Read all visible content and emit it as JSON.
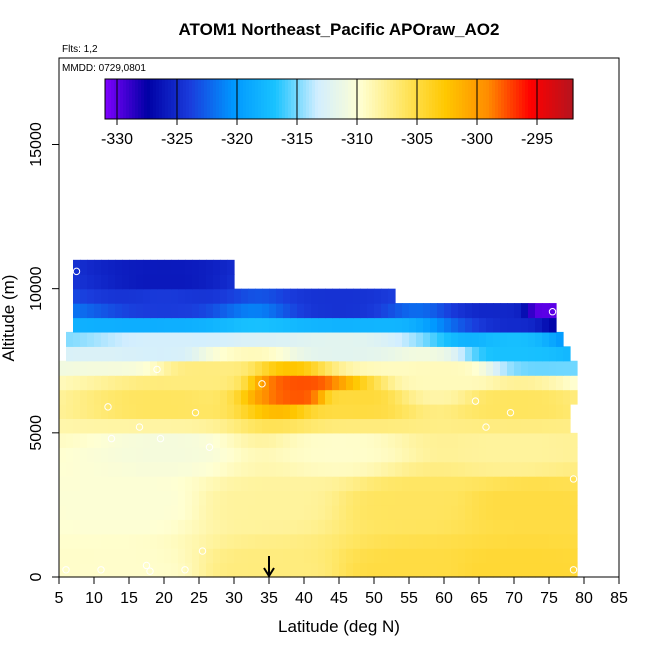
{
  "chart_data": {
    "type": "heatmap",
    "title": "ATOM1 Northeast_Pacific APOraw_AO2",
    "flights_note": "Flts: 1,2",
    "date_note": "MMDD: 0729,0801",
    "xlabel": "Latitude (deg N)",
    "ylabel": "Altitude (m)",
    "xlim": [
      5,
      85
    ],
    "ylim": [
      0,
      18000
    ],
    "x_ticks": [
      5,
      10,
      15,
      20,
      25,
      30,
      35,
      40,
      45,
      50,
      55,
      60,
      65,
      70,
      75,
      80,
      85
    ],
    "y_ticks": [
      0,
      5000,
      10000,
      15000
    ],
    "arrow_marker_latitude": 35,
    "colorbar": {
      "range": [
        -331,
        -292
      ],
      "ticks": [
        -330,
        -325,
        -320,
        -315,
        -310,
        -305,
        -300,
        -295
      ],
      "colors": [
        "#7f00ff",
        "#0000a5",
        "#1a3cdc",
        "#0096ff",
        "#19c3ff",
        "#d2eeff",
        "#ffffd2",
        "#ffe664",
        "#ffc800",
        "#ff8c00",
        "#ff0000",
        "#b4141e"
      ]
    },
    "grid_step": {
      "lat": 1,
      "alt": 500
    },
    "value_anchors": [
      {
        "lat": 15,
        "alt": 250,
        "value": -309.5
      },
      {
        "lat": 35,
        "alt": 250,
        "value": -307.0
      },
      {
        "lat": 55,
        "alt": 250,
        "value": -305.0
      },
      {
        "lat": 70,
        "alt": 250,
        "value": -304.5
      },
      {
        "lat": 15,
        "alt": 2500,
        "value": -310.0
      },
      {
        "lat": 35,
        "alt": 2500,
        "value": -308.0
      },
      {
        "lat": 55,
        "alt": 2500,
        "value": -306.0
      },
      {
        "lat": 72,
        "alt": 2500,
        "value": -305.0
      },
      {
        "lat": 20,
        "alt": 4500,
        "value": -310.5
      },
      {
        "lat": 45,
        "alt": 4500,
        "value": -309.5
      },
      {
        "lat": 70,
        "alt": 4500,
        "value": -308.0
      },
      {
        "lat": 20,
        "alt": 6000,
        "value": -306.0
      },
      {
        "lat": 45,
        "alt": 6000,
        "value": -305.0
      },
      {
        "lat": 70,
        "alt": 6000,
        "value": -306.0
      },
      {
        "lat": 25,
        "alt": 7000,
        "value": -307.0
      },
      {
        "lat": 40,
        "alt": 6500,
        "value": -297.5
      },
      {
        "lat": 60,
        "alt": 7000,
        "value": -309.0
      },
      {
        "lat": 20,
        "alt": 8000,
        "value": -313.0
      },
      {
        "lat": 45,
        "alt": 8000,
        "value": -312.0
      },
      {
        "lat": 70,
        "alt": 8000,
        "value": -317.0
      },
      {
        "lat": 20,
        "alt": 9500,
        "value": -324.0
      },
      {
        "lat": 45,
        "alt": 9500,
        "value": -324.5
      },
      {
        "lat": 70,
        "alt": 9000,
        "value": -325.0
      },
      {
        "lat": 20,
        "alt": 10300,
        "value": -326.0
      },
      {
        "lat": 75,
        "alt": 9300,
        "value": -330.0
      }
    ],
    "sample_points": [
      {
        "lat": 7.5,
        "alt": 10600
      },
      {
        "lat": 19,
        "alt": 7200
      },
      {
        "lat": 12,
        "alt": 5900
      },
      {
        "lat": 24.5,
        "alt": 5700
      },
      {
        "lat": 16.5,
        "alt": 5200
      },
      {
        "lat": 34,
        "alt": 6700
      },
      {
        "lat": 19.5,
        "alt": 4800
      },
      {
        "lat": 12.5,
        "alt": 4800
      },
      {
        "lat": 26.5,
        "alt": 4500
      },
      {
        "lat": 64.5,
        "alt": 6100
      },
      {
        "lat": 66,
        "alt": 5200
      },
      {
        "lat": 69.5,
        "alt": 5700
      },
      {
        "lat": 75.5,
        "alt": 9200
      },
      {
        "lat": 78.5,
        "alt": 3400
      },
      {
        "lat": 6,
        "alt": 250
      },
      {
        "lat": 11,
        "alt": 250
      },
      {
        "lat": 17.5,
        "alt": 400
      },
      {
        "lat": 18,
        "alt": 200
      },
      {
        "lat": 23,
        "alt": 250
      },
      {
        "lat": 25.5,
        "alt": 900
      },
      {
        "lat": 78.5,
        "alt": 250
      }
    ]
  }
}
